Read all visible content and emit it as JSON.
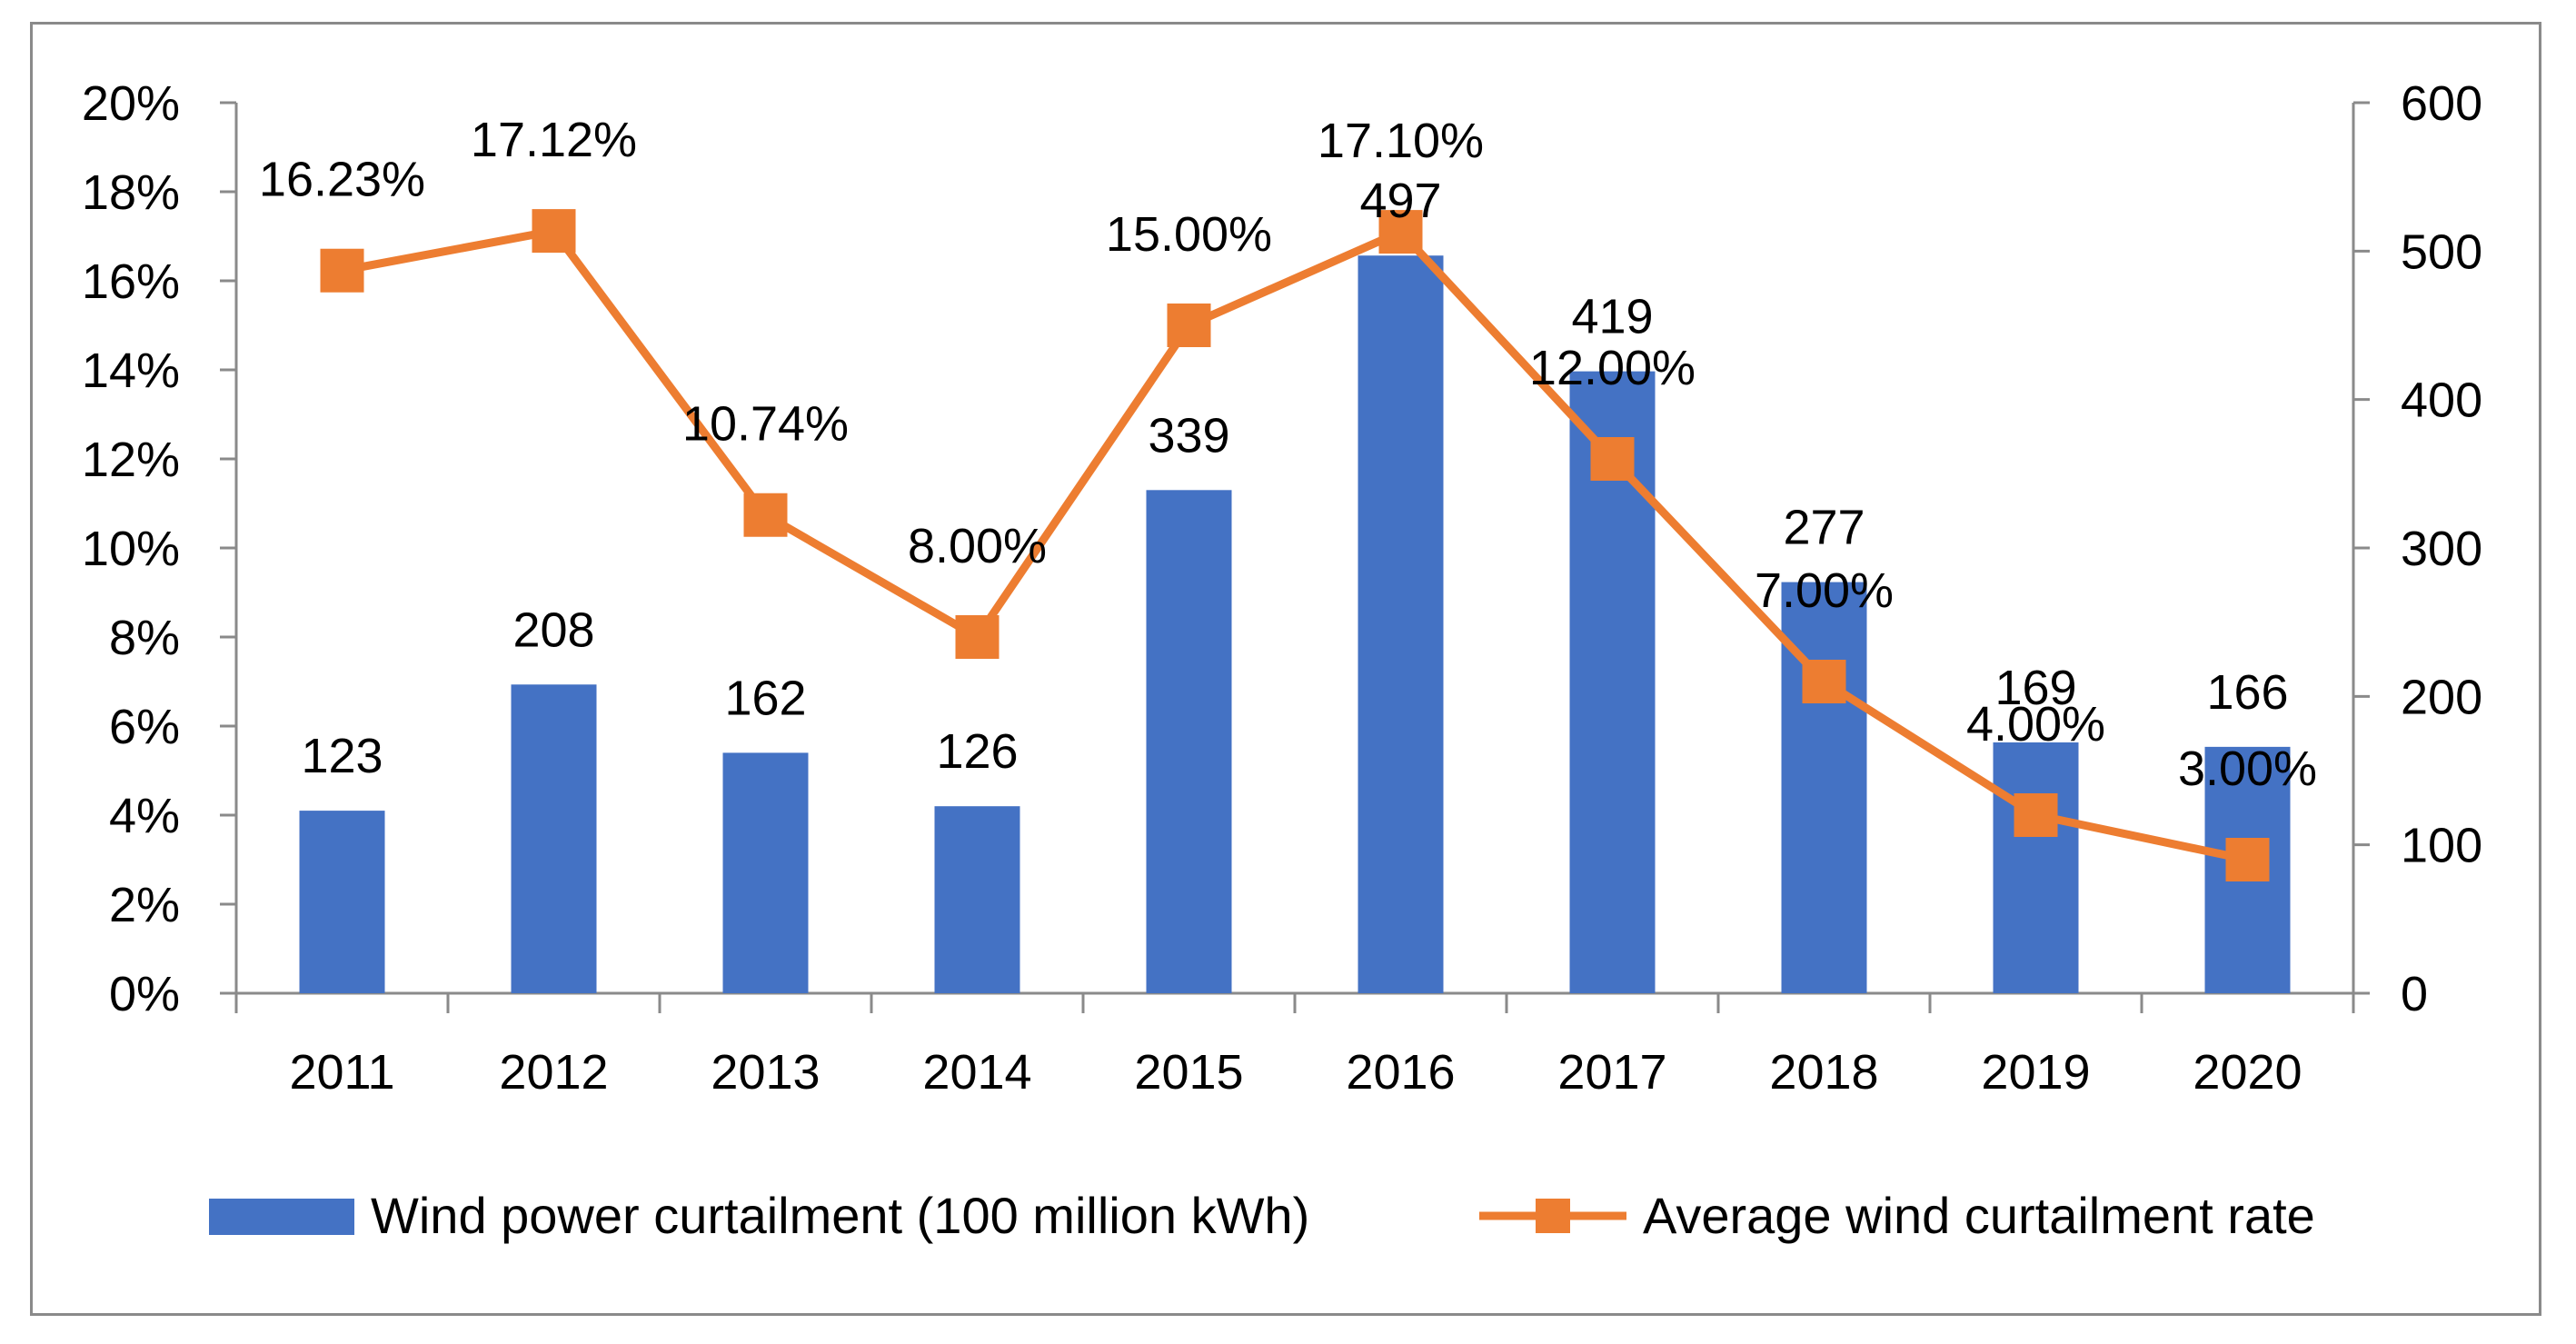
{
  "chart_data": {
    "type": "bar+line",
    "categories": [
      "2011",
      "2012",
      "2013",
      "2014",
      "2015",
      "2016",
      "2017",
      "2018",
      "2019",
      "2020"
    ],
    "series": [
      {
        "name": "Wind power curtailment (100 million kWh)",
        "type": "bar",
        "axis": "right",
        "color": "#4472C4",
        "values": [
          123,
          208,
          162,
          126,
          339,
          497,
          419,
          277,
          169,
          166
        ],
        "labels": [
          "123",
          "208",
          "162",
          "126",
          "339",
          "497",
          "419",
          "277",
          "169",
          "166"
        ]
      },
      {
        "name": "Average wind curtailment rate",
        "type": "line",
        "axis": "left",
        "color": "#ED7D31",
        "marker": "square",
        "values": [
          16.23,
          17.12,
          10.74,
          8.0,
          15.0,
          17.1,
          12.0,
          7.0,
          4.0,
          3.0
        ],
        "labels": [
          "16.23%",
          "17.12%",
          "10.74%",
          "8.00%",
          "15.00%",
          "17.10%",
          "12.00%",
          "7.00%",
          "4.00%",
          "3.00%"
        ]
      }
    ],
    "left_axis": {
      "min": 0,
      "max": 20,
      "ticks": [
        0,
        2,
        4,
        6,
        8,
        10,
        12,
        14,
        16,
        18,
        20
      ],
      "tick_labels": [
        "0%",
        "2%",
        "4%",
        "6%",
        "8%",
        "10%",
        "12%",
        "14%",
        "16%",
        "18%",
        "20%"
      ]
    },
    "right_axis": {
      "min": 0,
      "max": 600,
      "ticks": [
        0,
        100,
        200,
        300,
        400,
        500,
        600
      ],
      "tick_labels": [
        "0",
        "100",
        "200",
        "300",
        "400",
        "500",
        "600"
      ]
    },
    "legend_position": "bottom",
    "grid": false,
    "title": ""
  }
}
